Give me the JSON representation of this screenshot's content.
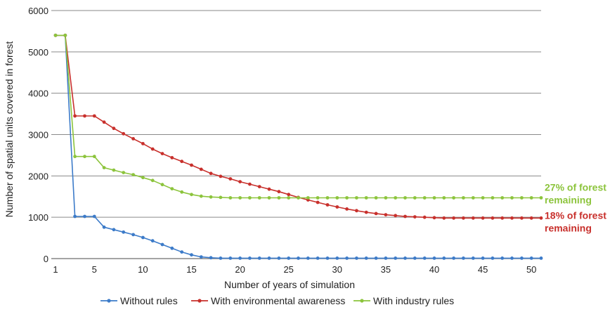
{
  "chart_data": {
    "type": "line",
    "xlabel": "Number of years of simulation",
    "ylabel": "Number of spatial units covered in forest",
    "ylim": [
      0,
      6000
    ],
    "xlim": [
      1,
      51
    ],
    "yticks": [
      "0",
      "1000",
      "2000",
      "3000",
      "4000",
      "5000",
      "6000"
    ],
    "xticks": [
      "1",
      "5",
      "10",
      "15",
      "20",
      "25",
      "30",
      "35",
      "40",
      "45",
      "50"
    ],
    "grid": "horizontal",
    "legend_position": "bottom",
    "x": [
      1,
      2,
      3,
      4,
      5,
      6,
      7,
      8,
      9,
      10,
      11,
      12,
      13,
      14,
      15,
      16,
      17,
      18,
      19,
      20,
      21,
      22,
      23,
      24,
      25,
      26,
      27,
      28,
      29,
      30,
      31,
      32,
      33,
      34,
      35,
      36,
      37,
      38,
      39,
      40,
      41,
      42,
      43,
      44,
      45,
      46,
      47,
      48,
      49,
      50,
      51
    ],
    "series": [
      {
        "name": "Without rules",
        "color": "#3c7bc9",
        "values": [
          5400,
          5400,
          1020,
          1020,
          1020,
          760,
          700,
          640,
          580,
          510,
          430,
          340,
          250,
          160,
          90,
          40,
          20,
          10,
          10,
          10,
          10,
          10,
          10,
          10,
          10,
          10,
          10,
          10,
          10,
          10,
          10,
          10,
          10,
          10,
          10,
          10,
          10,
          10,
          10,
          10,
          10,
          10,
          10,
          10,
          10,
          10,
          10,
          10,
          10,
          10,
          10
        ]
      },
      {
        "name": "With environmental awareness",
        "color": "#c8302c",
        "values": [
          5400,
          5400,
          3450,
          3450,
          3450,
          3300,
          3150,
          3020,
          2900,
          2780,
          2650,
          2540,
          2440,
          2350,
          2260,
          2160,
          2060,
          1990,
          1930,
          1860,
          1800,
          1740,
          1680,
          1620,
          1550,
          1480,
          1420,
          1360,
          1300,
          1250,
          1200,
          1160,
          1120,
          1090,
          1060,
          1040,
          1020,
          1010,
          1000,
          990,
          980,
          980,
          980,
          980,
          980,
          980,
          980,
          980,
          980,
          980,
          980
        ]
      },
      {
        "name": "With industry rules",
        "color": "#8cc43c",
        "values": [
          5400,
          5400,
          2470,
          2470,
          2470,
          2200,
          2140,
          2080,
          2030,
          1960,
          1890,
          1790,
          1690,
          1610,
          1550,
          1510,
          1490,
          1480,
          1470,
          1470,
          1470,
          1470,
          1470,
          1470,
          1470,
          1470,
          1470,
          1470,
          1470,
          1470,
          1470,
          1470,
          1470,
          1470,
          1470,
          1470,
          1470,
          1470,
          1470,
          1470,
          1470,
          1470,
          1470,
          1470,
          1470,
          1470,
          1470,
          1470,
          1470,
          1470,
          1470
        ]
      }
    ],
    "annotations": [
      {
        "line1": "27% of forest",
        "line2": "remaining",
        "color": "#8cc43c",
        "anchor_value": 1470
      },
      {
        "line1": "18% of forest",
        "line2": "remaining",
        "color": "#c8302c",
        "anchor_value": 980
      }
    ]
  }
}
